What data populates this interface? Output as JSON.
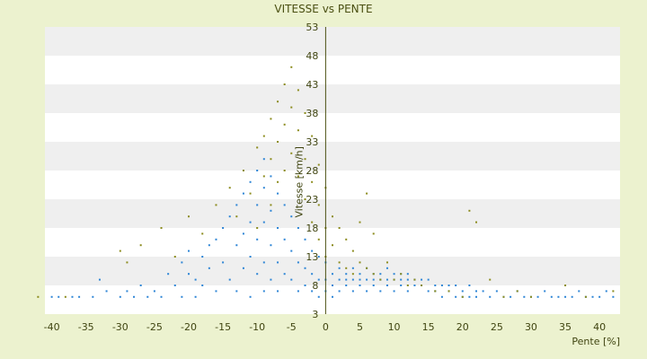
{
  "chart_data": {
    "type": "scatter",
    "title": "VITESSE vs PENTE",
    "xlabel": "Pente [%]",
    "ylabel": "Vitesse [km/h]",
    "xlim": [
      -41,
      43
    ],
    "ylim": [
      3,
      53
    ],
    "x_ticks": [
      -40,
      -35,
      -30,
      -25,
      -20,
      -15,
      -10,
      -5,
      0,
      5,
      10,
      15,
      20,
      25,
      30,
      35,
      40
    ],
    "y_ticks": [
      3,
      8,
      13,
      18,
      23,
      28,
      33,
      38,
      43,
      48,
      53
    ],
    "grid": "horizontal-bands",
    "legend": "none",
    "colors": {
      "background": "#ecf2cf",
      "band_light": "#ffffff",
      "band_dark": "#efefef",
      "axis": "#4a4f12",
      "series_blue": "#2f86d6",
      "series_olive": "#8c8c1e"
    },
    "series": [
      {
        "color": "#2f86d6",
        "points": [
          [
            -40,
            6
          ],
          [
            -39,
            6
          ],
          [
            -37,
            6
          ],
          [
            -36,
            6
          ],
          [
            -34,
            6
          ],
          [
            -33,
            9
          ],
          [
            -32,
            7
          ],
          [
            -30,
            6
          ],
          [
            -29,
            7
          ],
          [
            -28,
            6
          ],
          [
            -27,
            8
          ],
          [
            -26,
            6
          ],
          [
            -25,
            7
          ],
          [
            -24,
            6
          ],
          [
            -23,
            10
          ],
          [
            -22,
            8
          ],
          [
            -21,
            12
          ],
          [
            -21,
            6
          ],
          [
            -20,
            14
          ],
          [
            -20,
            10
          ],
          [
            -19,
            9
          ],
          [
            -19,
            6
          ],
          [
            -18,
            13
          ],
          [
            -18,
            8
          ],
          [
            -17,
            15
          ],
          [
            -17,
            11
          ],
          [
            -16,
            16
          ],
          [
            -16,
            7
          ],
          [
            -15,
            18
          ],
          [
            -15,
            12
          ],
          [
            -14,
            20
          ],
          [
            -14,
            9
          ],
          [
            -13,
            22
          ],
          [
            -13,
            15
          ],
          [
            -13,
            7
          ],
          [
            -12,
            24
          ],
          [
            -12,
            17
          ],
          [
            -12,
            11
          ],
          [
            -11,
            26
          ],
          [
            -11,
            19
          ],
          [
            -11,
            13
          ],
          [
            -11,
            6
          ],
          [
            -10,
            28
          ],
          [
            -10,
            22
          ],
          [
            -10,
            16
          ],
          [
            -10,
            10
          ],
          [
            -9,
            30
          ],
          [
            -9,
            25
          ],
          [
            -9,
            19
          ],
          [
            -9,
            12
          ],
          [
            -9,
            7
          ],
          [
            -8,
            27
          ],
          [
            -8,
            21
          ],
          [
            -8,
            15
          ],
          [
            -8,
            9
          ],
          [
            -7,
            24
          ],
          [
            -7,
            18
          ],
          [
            -7,
            12
          ],
          [
            -7,
            7
          ],
          [
            -6,
            22
          ],
          [
            -6,
            16
          ],
          [
            -6,
            10
          ],
          [
            -5,
            20
          ],
          [
            -5,
            14
          ],
          [
            -5,
            9
          ],
          [
            -4,
            18
          ],
          [
            -4,
            12
          ],
          [
            -4,
            7
          ],
          [
            -3,
            16
          ],
          [
            -3,
            11
          ],
          [
            -3,
            8
          ],
          [
            -2,
            14
          ],
          [
            -2,
            10
          ],
          [
            -2,
            7
          ],
          [
            -1,
            13
          ],
          [
            -1,
            9
          ],
          [
            -1,
            6
          ],
          [
            0,
            12
          ],
          [
            0,
            9
          ],
          [
            0,
            7
          ],
          [
            1,
            10
          ],
          [
            1,
            8
          ],
          [
            1,
            6
          ],
          [
            2,
            11
          ],
          [
            2,
            9
          ],
          [
            2,
            7
          ],
          [
            3,
            10
          ],
          [
            3,
            9
          ],
          [
            3,
            8
          ],
          [
            4,
            11
          ],
          [
            4,
            9
          ],
          [
            4,
            7
          ],
          [
            5,
            10
          ],
          [
            5,
            9
          ],
          [
            5,
            8
          ],
          [
            6,
            11
          ],
          [
            6,
            9
          ],
          [
            6,
            7
          ],
          [
            7,
            10
          ],
          [
            7,
            9
          ],
          [
            7,
            8
          ],
          [
            8,
            10
          ],
          [
            8,
            9
          ],
          [
            8,
            7
          ],
          [
            9,
            11
          ],
          [
            9,
            9
          ],
          [
            9,
            8
          ],
          [
            10,
            10
          ],
          [
            10,
            9
          ],
          [
            10,
            7
          ],
          [
            11,
            10
          ],
          [
            11,
            9
          ],
          [
            11,
            8
          ],
          [
            12,
            10
          ],
          [
            12,
            9
          ],
          [
            12,
            7
          ],
          [
            13,
            9
          ],
          [
            13,
            8
          ],
          [
            14,
            9
          ],
          [
            14,
            8
          ],
          [
            15,
            9
          ],
          [
            15,
            7
          ],
          [
            16,
            8
          ],
          [
            16,
            7
          ],
          [
            17,
            8
          ],
          [
            17,
            6
          ],
          [
            18,
            8
          ],
          [
            18,
            7
          ],
          [
            19,
            8
          ],
          [
            19,
            6
          ],
          [
            20,
            7
          ],
          [
            20,
            6
          ],
          [
            21,
            8
          ],
          [
            21,
            6
          ],
          [
            22,
            7
          ],
          [
            22,
            6
          ],
          [
            23,
            7
          ],
          [
            24,
            6
          ],
          [
            25,
            7
          ],
          [
            26,
            6
          ],
          [
            27,
            6
          ],
          [
            28,
            7
          ],
          [
            29,
            6
          ],
          [
            30,
            6
          ],
          [
            31,
            6
          ],
          [
            32,
            7
          ],
          [
            33,
            6
          ],
          [
            34,
            6
          ],
          [
            35,
            6
          ],
          [
            36,
            6
          ],
          [
            37,
            7
          ],
          [
            38,
            6
          ],
          [
            39,
            6
          ],
          [
            40,
            6
          ],
          [
            41,
            7
          ],
          [
            42,
            6
          ]
        ]
      },
      {
        "color": "#8c8c1e",
        "points": [
          [
            -42,
            6
          ],
          [
            -38,
            6
          ],
          [
            -30,
            14
          ],
          [
            -29,
            12
          ],
          [
            -27,
            15
          ],
          [
            -24,
            18
          ],
          [
            -22,
            13
          ],
          [
            -20,
            20
          ],
          [
            -18,
            17
          ],
          [
            -16,
            22
          ],
          [
            -14,
            25
          ],
          [
            -13,
            20
          ],
          [
            -12,
            28
          ],
          [
            -11,
            24
          ],
          [
            -10,
            32
          ],
          [
            -10,
            18
          ],
          [
            -9,
            34
          ],
          [
            -9,
            27
          ],
          [
            -8,
            37
          ],
          [
            -8,
            30
          ],
          [
            -8,
            22
          ],
          [
            -7,
            40
          ],
          [
            -7,
            33
          ],
          [
            -7,
            26
          ],
          [
            -6,
            43
          ],
          [
            -6,
            36
          ],
          [
            -6,
            28
          ],
          [
            -5,
            46
          ],
          [
            -5,
            39
          ],
          [
            -5,
            31
          ],
          [
            -4,
            42
          ],
          [
            -4,
            35
          ],
          [
            -4,
            27
          ],
          [
            -3,
            38
          ],
          [
            -3,
            30
          ],
          [
            -3,
            23
          ],
          [
            -2,
            34
          ],
          [
            -2,
            26
          ],
          [
            -2,
            19
          ],
          [
            -1,
            29
          ],
          [
            -1,
            22
          ],
          [
            -1,
            16
          ],
          [
            0,
            25
          ],
          [
            0,
            18
          ],
          [
            0,
            13
          ],
          [
            1,
            20
          ],
          [
            1,
            15
          ],
          [
            2,
            18
          ],
          [
            2,
            12
          ],
          [
            3,
            16
          ],
          [
            3,
            11
          ],
          [
            4,
            14
          ],
          [
            4,
            10
          ],
          [
            5,
            19
          ],
          [
            5,
            12
          ],
          [
            6,
            24
          ],
          [
            6,
            11
          ],
          [
            7,
            17
          ],
          [
            7,
            10
          ],
          [
            8,
            9
          ],
          [
            9,
            12
          ],
          [
            10,
            9
          ],
          [
            11,
            10
          ],
          [
            12,
            8
          ],
          [
            13,
            9
          ],
          [
            14,
            8
          ],
          [
            16,
            7
          ],
          [
            18,
            7
          ],
          [
            20,
            6
          ],
          [
            21,
            21
          ],
          [
            22,
            19
          ],
          [
            24,
            9
          ],
          [
            26,
            6
          ],
          [
            28,
            7
          ],
          [
            30,
            6
          ],
          [
            35,
            8
          ],
          [
            38,
            6
          ],
          [
            42,
            7
          ]
        ]
      }
    ]
  }
}
